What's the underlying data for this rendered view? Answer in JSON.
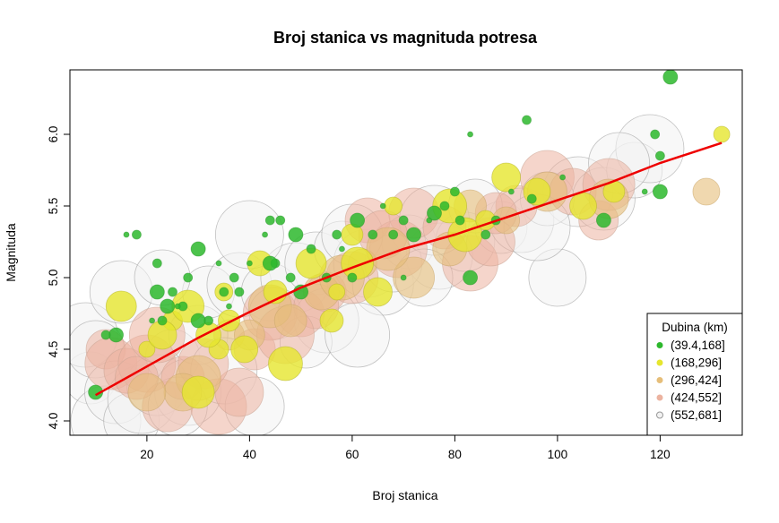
{
  "chart_data": {
    "type": "scatter",
    "title": "Broj stanica vs magnituda potresa",
    "xlabel": "Broj stanica",
    "ylabel": "Magnituda",
    "xlim": [
      5,
      136
    ],
    "ylim": [
      3.9,
      6.45
    ],
    "x_ticks": [
      20,
      40,
      60,
      80,
      100,
      120
    ],
    "y_ticks": [
      4.0,
      4.5,
      5.0,
      5.5,
      6.0
    ],
    "x_tick_labels": [
      "20",
      "40",
      "60",
      "80",
      "100",
      "120"
    ],
    "y_tick_labels": [
      "4.0",
      "4.5",
      "5.0",
      "5.5",
      "6.0"
    ],
    "legend": {
      "title": "Dubina (km)",
      "position": "bottom-right",
      "entries": [
        {
          "label": "(39.4,168]",
          "color": "#2db82d"
        },
        {
          "label": "(168,296]",
          "color": "#e6e62e"
        },
        {
          "label": "(296,424]",
          "color": "#e6be79"
        },
        {
          "label": "(424,552]",
          "color": "#ecb3a0"
        },
        {
          "label": "(552,681]",
          "color": "#f2f2f2"
        }
      ]
    },
    "trend_line": {
      "color": "#ee0000",
      "points": [
        [
          10,
          4.18
        ],
        [
          20,
          4.38
        ],
        [
          30,
          4.58
        ],
        [
          40,
          4.76
        ],
        [
          50,
          4.93
        ],
        [
          60,
          5.07
        ],
        [
          70,
          5.2
        ],
        [
          80,
          5.3
        ],
        [
          90,
          5.42
        ],
        [
          100,
          5.54
        ],
        [
          110,
          5.66
        ],
        [
          120,
          5.8
        ],
        [
          132,
          5.94
        ]
      ]
    },
    "series": [
      {
        "name": "(39.4,168]",
        "color": "#2db82d",
        "points": [
          [
            122,
            6.4
          ],
          [
            94,
            6.1
          ],
          [
            119,
            6.0
          ],
          [
            83,
            6.0
          ],
          [
            120,
            5.6
          ],
          [
            18,
            5.3
          ],
          [
            16,
            5.3
          ],
          [
            22,
            5.1
          ],
          [
            30,
            5.2
          ],
          [
            34,
            5.1
          ],
          [
            37,
            5.0
          ],
          [
            28,
            5.0
          ],
          [
            22,
            4.9
          ],
          [
            25,
            4.9
          ],
          [
            27,
            4.8
          ],
          [
            26,
            4.8
          ],
          [
            24,
            4.8
          ],
          [
            32,
            4.7
          ],
          [
            36,
            4.8
          ],
          [
            45,
            5.1
          ],
          [
            44,
            5.1
          ],
          [
            43,
            5.3
          ],
          [
            44,
            5.4
          ],
          [
            46,
            5.4
          ],
          [
            49,
            5.3
          ],
          [
            52,
            5.2
          ],
          [
            55,
            5.0
          ],
          [
            58,
            5.2
          ],
          [
            61,
            5.4
          ],
          [
            64,
            5.3
          ],
          [
            66,
            5.5
          ],
          [
            70,
            5.4
          ],
          [
            72,
            5.3
          ],
          [
            75,
            5.4
          ],
          [
            78,
            5.5
          ],
          [
            80,
            5.6
          ],
          [
            83,
            5.0
          ],
          [
            86,
            5.3
          ],
          [
            88,
            5.4
          ],
          [
            91,
            5.6
          ],
          [
            14,
            4.6
          ],
          [
            12,
            4.6
          ],
          [
            21,
            4.7
          ],
          [
            23,
            4.7
          ],
          [
            10,
            4.2
          ],
          [
            70,
            5.0
          ],
          [
            60,
            5.0
          ],
          [
            68,
            5.3
          ],
          [
            76,
            5.45
          ],
          [
            81,
            5.4
          ],
          [
            95,
            5.55
          ],
          [
            101,
            5.7
          ],
          [
            109,
            5.4
          ],
          [
            120,
            5.85
          ],
          [
            117,
            5.6
          ],
          [
            48,
            5.0
          ],
          [
            50,
            4.9
          ],
          [
            40,
            5.1
          ],
          [
            38,
            4.9
          ],
          [
            57,
            5.3
          ],
          [
            30,
            4.7
          ],
          [
            35,
            4.9
          ]
        ]
      },
      {
        "name": "(168,296]",
        "color": "#e6e62e",
        "points": [
          [
            132,
            6.0
          ],
          [
            90,
            5.7
          ],
          [
            111,
            5.6
          ],
          [
            47,
            4.4
          ],
          [
            39,
            4.5
          ],
          [
            34,
            4.5
          ],
          [
            30,
            4.2
          ],
          [
            32,
            4.6
          ],
          [
            35,
            4.9
          ],
          [
            15,
            4.8
          ],
          [
            56,
            4.7
          ],
          [
            57,
            4.9
          ],
          [
            65,
            4.9
          ],
          [
            60,
            5.3
          ],
          [
            82,
            5.3
          ],
          [
            96,
            5.6
          ],
          [
            25,
            4.7
          ],
          [
            28,
            4.8
          ],
          [
            42,
            5.1
          ],
          [
            68,
            5.5
          ],
          [
            52,
            5.1
          ],
          [
            45,
            4.9
          ],
          [
            20,
            4.5
          ],
          [
            23,
            4.6
          ],
          [
            36,
            4.7
          ],
          [
            79,
            5.5
          ],
          [
            105,
            5.5
          ],
          [
            86,
            5.4
          ],
          [
            61,
            5.1
          ]
        ]
      },
      {
        "name": "(296,424]",
        "color": "#e6be79",
        "points": [
          [
            129,
            5.6
          ],
          [
            98,
            5.6
          ],
          [
            83,
            5.5
          ],
          [
            30,
            4.3
          ],
          [
            27,
            4.2
          ],
          [
            36,
            4.6
          ],
          [
            44,
            4.8
          ],
          [
            54,
            4.9
          ],
          [
            62,
            5.1
          ],
          [
            72,
            5.0
          ],
          [
            79,
            5.2
          ],
          [
            90,
            5.4
          ],
          [
            110,
            5.55
          ],
          [
            48,
            4.7
          ],
          [
            58,
            5.0
          ],
          [
            20,
            4.2
          ],
          [
            40,
            4.6
          ],
          [
            67,
            5.2
          ]
        ]
      },
      {
        "name": "(424,552]",
        "color": "#ecb3a0",
        "points": [
          [
            12,
            4.5
          ],
          [
            13,
            4.4
          ],
          [
            16,
            4.35
          ],
          [
            20,
            4.4
          ],
          [
            24,
            4.1
          ],
          [
            27,
            4.3
          ],
          [
            34,
            4.1
          ],
          [
            38,
            4.2
          ],
          [
            41,
            4.5
          ],
          [
            44,
            4.75
          ],
          [
            50,
            4.75
          ],
          [
            55,
            4.9
          ],
          [
            60,
            5.0
          ],
          [
            63,
            5.4
          ],
          [
            69,
            5.2
          ],
          [
            72,
            5.45
          ],
          [
            78,
            5.35
          ],
          [
            83,
            5.1
          ],
          [
            87,
            5.25
          ],
          [
            92,
            5.5
          ],
          [
            98,
            5.7
          ],
          [
            103,
            5.6
          ],
          [
            108,
            5.4
          ],
          [
            110,
            5.65
          ],
          [
            53,
            4.8
          ],
          [
            47,
            4.6
          ],
          [
            31,
            4.4
          ],
          [
            18,
            4.3
          ],
          [
            22,
            4.6
          ],
          [
            66,
            5.3
          ],
          [
            88,
            5.45
          ]
        ]
      },
      {
        "name": "(552,681]",
        "color": "#f2f2f2",
        "points": [
          [
            9,
            4.3
          ],
          [
            8,
            4.6
          ],
          [
            10,
            4.5
          ],
          [
            12,
            4.0
          ],
          [
            14,
            4.2
          ],
          [
            17,
            4.0
          ],
          [
            19,
            4.15
          ],
          [
            22,
            4.25
          ],
          [
            25,
            4.45
          ],
          [
            28,
            4.2
          ],
          [
            30,
            4.6
          ],
          [
            32,
            4.9
          ],
          [
            38,
            4.95
          ],
          [
            44,
            4.9
          ],
          [
            49,
            5.0
          ],
          [
            53,
            5.1
          ],
          [
            58,
            5.2
          ],
          [
            63,
            5.1
          ],
          [
            66,
            4.95
          ],
          [
            71,
            5.25
          ],
          [
            77,
            5.15
          ],
          [
            82,
            5.25
          ],
          [
            89,
            5.35
          ],
          [
            93,
            5.4
          ],
          [
            100,
            5.0
          ],
          [
            104,
            5.6
          ],
          [
            109,
            5.55
          ],
          [
            115,
            5.75
          ],
          [
            118,
            5.9
          ],
          [
            112,
            5.8
          ],
          [
            98,
            5.55
          ],
          [
            35,
            4.35
          ],
          [
            41,
            4.1
          ],
          [
            45,
            4.75
          ],
          [
            55,
            4.7
          ],
          [
            68,
            5.1
          ],
          [
            76,
            5.4
          ],
          [
            15,
            4.9
          ],
          [
            23,
            5.0
          ],
          [
            40,
            5.3
          ],
          [
            60,
            5.3
          ],
          [
            84,
            5.5
          ],
          [
            96,
            5.35
          ],
          [
            26,
            4.1
          ],
          [
            51,
            4.55
          ],
          [
            61,
            4.6
          ],
          [
            74,
            5.0
          ]
        ]
      }
    ]
  }
}
